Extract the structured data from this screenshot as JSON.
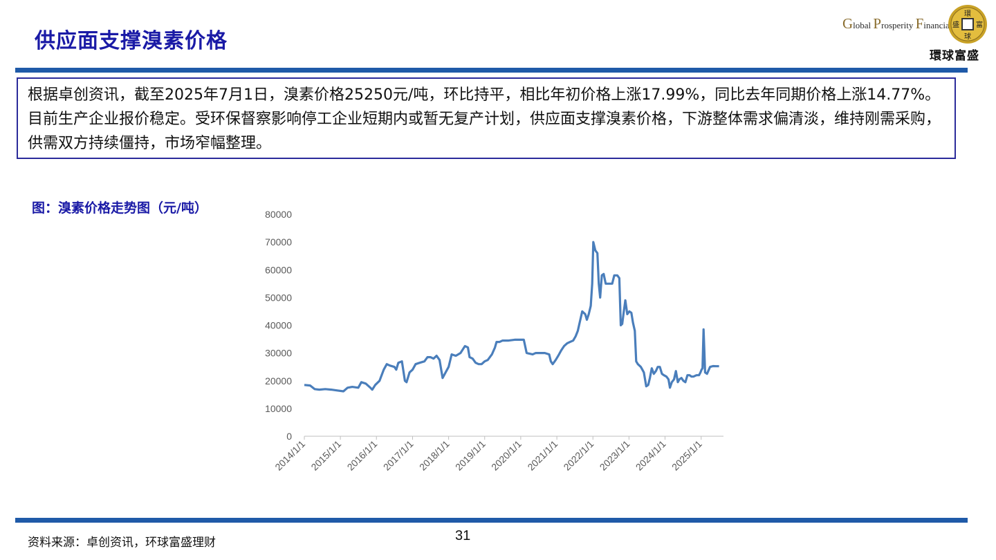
{
  "page": {
    "title": "供应面支撑溴素价格",
    "summary": "根据卓创资讯，截至2025年7月1日，溴素价格25250元/吨，环比持平，相比年初价格上涨17.99%，同比去年同期价格上涨14.77%。目前生产企业报价稳定。受环保督察影响停工企业短期内或暂无复产计划，供应面支撑溴素价格，下游整体需求偏清淡，维持刚需采购，供需双方持续僵持，市场窄幅整理。",
    "chart_title": "图：溴素价格走势图（元/吨）",
    "source": "资料来源：卓创资讯，环球富盛理财",
    "page_number": "31"
  },
  "logo": {
    "en_g": "G",
    "en_lobal": "lobal ",
    "en_p": "P",
    "en_rosperity": "rosperity ",
    "en_f": "F",
    "en_inancial": "inancial",
    "cn": "環球富盛",
    "coin_chars": [
      "環",
      "球",
      "盛",
      "富"
    ]
  },
  "colors": {
    "accent": "#1f5aa8",
    "title": "#1a1aa6",
    "line": "#4a7ebb"
  },
  "chart_data": {
    "type": "line",
    "title": "",
    "xlabel": "",
    "ylabel": "",
    "ylim": [
      0,
      80000
    ],
    "yticks": [
      0,
      10000,
      20000,
      30000,
      40000,
      50000,
      60000,
      70000,
      80000
    ],
    "xlim": [
      "2014-01-01",
      "2025-08-15"
    ],
    "xticks": [
      "2014/1/1",
      "2015/1/1",
      "2016/1/1",
      "2017/1/1",
      "2018/1/1",
      "2019/1/1",
      "2020/1/1",
      "2021/1/1",
      "2022/1/1",
      "2023/1/1",
      "2024/1/1",
      "2025/1/1"
    ],
    "grid": false,
    "legend": "none",
    "series": [
      {
        "name": "",
        "points": [
          [
            "2014-01-01",
            18500
          ],
          [
            "2014-03-01",
            18300
          ],
          [
            "2014-04-15",
            17000
          ],
          [
            "2014-06-01",
            16800
          ],
          [
            "2014-08-01",
            17000
          ],
          [
            "2014-10-01",
            16800
          ],
          [
            "2014-12-01",
            16500
          ],
          [
            "2015-02-01",
            16200
          ],
          [
            "2015-03-15",
            17500
          ],
          [
            "2015-05-01",
            17800
          ],
          [
            "2015-07-01",
            17500
          ],
          [
            "2015-08-01",
            19500
          ],
          [
            "2015-09-15",
            19000
          ],
          [
            "2015-11-01",
            17500
          ],
          [
            "2015-11-20",
            16800
          ],
          [
            "2015-12-20",
            18500
          ],
          [
            "2016-02-01",
            20000
          ],
          [
            "2016-03-15",
            24000
          ],
          [
            "2016-04-15",
            26000
          ],
          [
            "2016-05-15",
            25500
          ],
          [
            "2016-07-01",
            25000
          ],
          [
            "2016-07-20",
            24000
          ],
          [
            "2016-08-10",
            26500
          ],
          [
            "2016-09-15",
            27000
          ],
          [
            "2016-10-15",
            20000
          ],
          [
            "2016-11-01",
            19500
          ],
          [
            "2016-12-01",
            23000
          ],
          [
            "2017-01-01",
            24000
          ],
          [
            "2017-02-01",
            26000
          ],
          [
            "2017-03-15",
            26500
          ],
          [
            "2017-05-01",
            27000
          ],
          [
            "2017-06-01",
            28500
          ],
          [
            "2017-07-01",
            28500
          ],
          [
            "2017-08-01",
            28000
          ],
          [
            "2017-09-01",
            29000
          ],
          [
            "2017-10-01",
            27500
          ],
          [
            "2017-11-01",
            21000
          ],
          [
            "2017-12-01",
            23000
          ],
          [
            "2018-01-01",
            25000
          ],
          [
            "2018-02-01",
            29500
          ],
          [
            "2018-03-15",
            29000
          ],
          [
            "2018-05-01",
            30000
          ],
          [
            "2018-06-15",
            32500
          ],
          [
            "2018-07-15",
            32000
          ],
          [
            "2018-08-01",
            28500
          ],
          [
            "2018-09-01",
            28000
          ],
          [
            "2018-10-01",
            26500
          ],
          [
            "2018-11-01",
            26000
          ],
          [
            "2018-12-01",
            26000
          ],
          [
            "2019-01-01",
            27000
          ],
          [
            "2019-02-01",
            27500
          ],
          [
            "2019-03-15",
            29500
          ],
          [
            "2019-04-15",
            32000
          ],
          [
            "2019-05-01",
            34000
          ],
          [
            "2019-06-01",
            34000
          ],
          [
            "2019-07-01",
            34500
          ],
          [
            "2019-09-01",
            34500
          ],
          [
            "2019-11-01",
            34800
          ],
          [
            "2019-12-15",
            34800
          ],
          [
            "2020-02-01",
            34800
          ],
          [
            "2020-03-01",
            30000
          ],
          [
            "2020-05-01",
            29500
          ],
          [
            "2020-06-01",
            30000
          ],
          [
            "2020-09-01",
            30000
          ],
          [
            "2020-10-15",
            29500
          ],
          [
            "2020-11-01",
            27000
          ],
          [
            "2020-11-20",
            26000
          ],
          [
            "2020-12-20",
            27500
          ],
          [
            "2021-01-15",
            29000
          ],
          [
            "2021-02-15",
            31000
          ],
          [
            "2021-03-15",
            32500
          ],
          [
            "2021-04-15",
            33500
          ],
          [
            "2021-05-15",
            34000
          ],
          [
            "2021-06-15",
            34500
          ],
          [
            "2021-07-10",
            36000
          ],
          [
            "2021-08-01",
            38000
          ],
          [
            "2021-08-20",
            41000
          ],
          [
            "2021-09-15",
            45000
          ],
          [
            "2021-10-15",
            44000
          ],
          [
            "2021-11-01",
            42000
          ],
          [
            "2021-11-20",
            44000
          ],
          [
            "2021-12-10",
            47000
          ],
          [
            "2021-12-25",
            55000
          ],
          [
            "2022-01-05",
            70000
          ],
          [
            "2022-01-25",
            67000
          ],
          [
            "2022-02-15",
            66000
          ],
          [
            "2022-03-01",
            55000
          ],
          [
            "2022-03-15",
            50000
          ],
          [
            "2022-04-01",
            58000
          ],
          [
            "2022-04-20",
            58500
          ],
          [
            "2022-05-10",
            55000
          ],
          [
            "2022-06-15",
            55000
          ],
          [
            "2022-07-15",
            55000
          ],
          [
            "2022-08-05",
            58000
          ],
          [
            "2022-09-05",
            58000
          ],
          [
            "2022-09-25",
            57000
          ],
          [
            "2022-10-10",
            40000
          ],
          [
            "2022-10-25",
            40500
          ],
          [
            "2022-11-10",
            45000
          ],
          [
            "2022-11-25",
            49000
          ],
          [
            "2022-12-15",
            44000
          ],
          [
            "2023-01-05",
            45000
          ],
          [
            "2023-01-25",
            44500
          ],
          [
            "2023-02-10",
            41000
          ],
          [
            "2023-03-01",
            38000
          ],
          [
            "2023-03-15",
            27000
          ],
          [
            "2023-04-01",
            26000
          ],
          [
            "2023-05-01",
            25000
          ],
          [
            "2023-06-01",
            23000
          ],
          [
            "2023-06-25",
            18000
          ],
          [
            "2023-07-15",
            18500
          ],
          [
            "2023-08-01",
            21000
          ],
          [
            "2023-08-20",
            24500
          ],
          [
            "2023-09-10",
            22500
          ],
          [
            "2023-10-01",
            23500
          ],
          [
            "2023-10-20",
            25000
          ],
          [
            "2023-11-10",
            25000
          ],
          [
            "2023-12-01",
            22500
          ],
          [
            "2023-12-20",
            22000
          ],
          [
            "2024-01-15",
            21500
          ],
          [
            "2024-02-05",
            20500
          ],
          [
            "2024-02-20",
            17500
          ],
          [
            "2024-03-10",
            19500
          ],
          [
            "2024-04-01",
            20500
          ],
          [
            "2024-04-20",
            23500
          ],
          [
            "2024-05-10",
            19500
          ],
          [
            "2024-05-25",
            20500
          ],
          [
            "2024-06-15",
            21000
          ],
          [
            "2024-07-05",
            20000
          ],
          [
            "2024-07-25",
            19500
          ],
          [
            "2024-08-15",
            22000
          ],
          [
            "2024-09-05",
            22000
          ],
          [
            "2024-09-25",
            21500
          ],
          [
            "2024-10-15",
            21500
          ],
          [
            "2024-11-15",
            22000
          ],
          [
            "2024-12-10",
            22000
          ],
          [
            "2024-12-25",
            23000
          ],
          [
            "2025-01-05",
            24000
          ],
          [
            "2025-01-15",
            24500
          ],
          [
            "2025-01-25",
            38500
          ],
          [
            "2025-02-02",
            31000
          ],
          [
            "2025-02-10",
            23000
          ],
          [
            "2025-03-01",
            22500
          ],
          [
            "2025-04-01",
            25000
          ],
          [
            "2025-05-01",
            25300
          ],
          [
            "2025-06-01",
            25250
          ],
          [
            "2025-07-01",
            25250
          ]
        ]
      }
    ]
  }
}
